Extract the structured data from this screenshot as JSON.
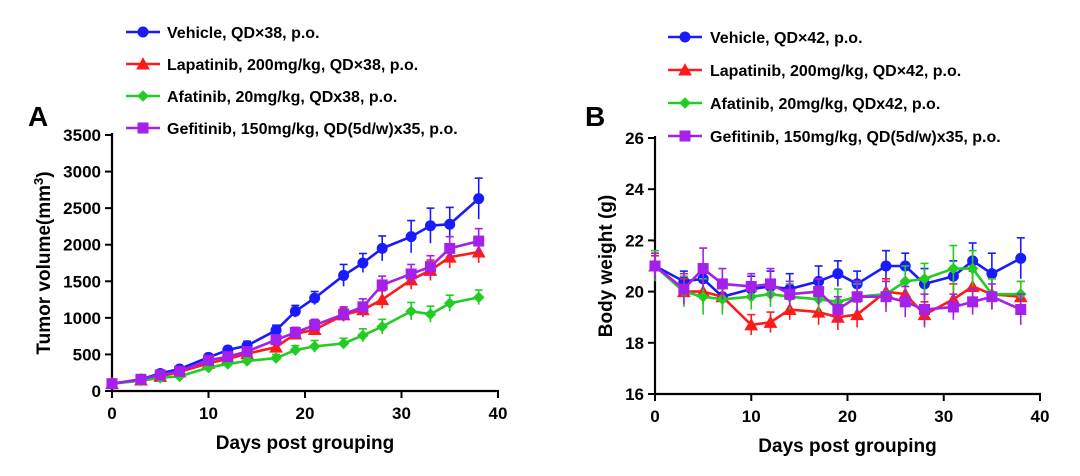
{
  "chart_data": [
    {
      "type": "line",
      "panel_label": "A",
      "xlabel": "Days post grouping",
      "ylabel": "Tumor volume(mm",
      "ylabel_sup": "3",
      "ylabel_suffix": ")",
      "xlim": [
        0,
        40
      ],
      "ylim": [
        0,
        3500
      ],
      "xticks": [
        0,
        10,
        20,
        30,
        40
      ],
      "yticks": [
        0,
        500,
        1000,
        1500,
        2000,
        2500,
        3000,
        3500
      ],
      "legend_position": "top",
      "series": [
        {
          "name": "Vehicle, QD×38, p.o.",
          "color": "#1a1aff",
          "marker": "circle",
          "x": [
            0,
            3,
            5,
            7,
            10,
            12,
            14,
            17,
            19,
            21,
            24,
            26,
            28,
            31,
            33,
            35,
            38
          ],
          "y": [
            100,
            160,
            240,
            300,
            460,
            560,
            620,
            830,
            1090,
            1270,
            1580,
            1750,
            1950,
            2110,
            2260,
            2280,
            2630
          ],
          "err": [
            25,
            25,
            30,
            40,
            50,
            50,
            60,
            70,
            80,
            90,
            150,
            130,
            170,
            220,
            240,
            230,
            280
          ]
        },
        {
          "name": "Lapatinib, 200mg/kg, QD×38, p.o.",
          "color": "#ff1a1a",
          "marker": "triangle",
          "x": [
            0,
            3,
            5,
            7,
            10,
            12,
            14,
            17,
            19,
            21,
            24,
            26,
            28,
            31,
            33,
            35,
            38
          ],
          "y": [
            100,
            150,
            200,
            260,
            380,
            440,
            510,
            600,
            780,
            840,
            1040,
            1110,
            1250,
            1520,
            1650,
            1830,
            1900
          ],
          "err": [
            20,
            20,
            25,
            30,
            40,
            45,
            50,
            60,
            70,
            75,
            90,
            100,
            120,
            130,
            140,
            150,
            150
          ]
        },
        {
          "name": "Afatinib, 20mg/kg, QDx38, p.o.",
          "color": "#22cc22",
          "marker": "diamond",
          "x": [
            0,
            3,
            5,
            7,
            10,
            12,
            14,
            17,
            19,
            21,
            24,
            26,
            28,
            31,
            33,
            35,
            38
          ],
          "y": [
            100,
            140,
            180,
            200,
            320,
            370,
            410,
            450,
            560,
            610,
            650,
            760,
            880,
            1090,
            1050,
            1200,
            1280
          ],
          "err": [
            20,
            20,
            25,
            25,
            35,
            40,
            40,
            50,
            60,
            80,
            70,
            90,
            100,
            120,
            110,
            110,
            100
          ]
        },
        {
          "name": "Gefitinib, 150mg/kg, QD(5d/w)x35, p.o.",
          "color": "#a520e8",
          "marker": "square",
          "x": [
            0,
            3,
            5,
            7,
            10,
            12,
            14,
            17,
            19,
            21,
            24,
            26,
            28,
            31,
            33,
            35,
            38
          ],
          "y": [
            100,
            160,
            220,
            270,
            420,
            470,
            540,
            700,
            800,
            900,
            1050,
            1150,
            1450,
            1600,
            1700,
            1950,
            2050
          ],
          "err": [
            20,
            25,
            30,
            35,
            45,
            50,
            55,
            65,
            70,
            80,
            100,
            110,
            120,
            130,
            150,
            160,
            170
          ]
        }
      ]
    },
    {
      "type": "line",
      "panel_label": "B",
      "xlabel": "Days post grouping",
      "ylabel": "Body weight (g)",
      "xlim": [
        0,
        40
      ],
      "ylim": [
        16,
        26
      ],
      "xticks": [
        0,
        10,
        20,
        30,
        40
      ],
      "yticks": [
        16,
        18,
        20,
        22,
        24,
        26
      ],
      "legend_position": "top",
      "series": [
        {
          "name": "Vehicle, QD×42, p.o.",
          "color": "#1a1aff",
          "marker": "circle",
          "x": [
            0,
            3,
            5,
            7,
            10,
            12,
            14,
            17,
            19,
            21,
            24,
            26,
            28,
            31,
            33,
            35,
            38
          ],
          "y": [
            21.0,
            20.4,
            20.5,
            19.8,
            20.1,
            20.2,
            20.1,
            20.4,
            20.7,
            20.3,
            21.0,
            21.0,
            20.3,
            20.6,
            21.2,
            20.7,
            21.3
          ],
          "err": [
            0.4,
            0.4,
            0.5,
            0.5,
            0.5,
            0.6,
            0.6,
            0.6,
            0.5,
            0.5,
            0.6,
            0.5,
            0.6,
            0.6,
            0.7,
            0.8,
            0.8
          ]
        },
        {
          "name": "Lapatinib, 200mg/kg, QD×42, p.o.",
          "color": "#ff1a1a",
          "marker": "triangle",
          "x": [
            0,
            3,
            5,
            7,
            10,
            12,
            14,
            17,
            19,
            21,
            24,
            26,
            28,
            31,
            33,
            35,
            38
          ],
          "y": [
            21.0,
            20.0,
            20.0,
            19.8,
            18.7,
            18.8,
            19.3,
            19.2,
            19.0,
            19.1,
            20.0,
            19.9,
            19.1,
            19.7,
            20.2,
            19.9,
            19.8
          ],
          "err": [
            0.4,
            0.5,
            0.5,
            0.5,
            0.4,
            0.4,
            0.4,
            0.5,
            0.5,
            0.5,
            0.5,
            0.5,
            0.5,
            0.6,
            0.6,
            0.6,
            0.6
          ]
        },
        {
          "name": "Afatinib, 20mg/kg, QDx42, p.o.",
          "color": "#22cc22",
          "marker": "diamond",
          "x": [
            0,
            3,
            5,
            7,
            10,
            12,
            14,
            17,
            19,
            21,
            24,
            26,
            28,
            31,
            33,
            35,
            38
          ],
          "y": [
            21.0,
            20.0,
            19.8,
            19.7,
            19.8,
            19.9,
            19.8,
            19.7,
            19.6,
            19.8,
            19.9,
            20.4,
            20.5,
            20.9,
            20.9,
            19.9,
            19.9
          ],
          "err": [
            0.6,
            0.6,
            0.7,
            0.6,
            0.5,
            0.5,
            0.5,
            0.5,
            0.5,
            0.5,
            0.5,
            0.6,
            0.6,
            0.9,
            0.7,
            0.6,
            0.5
          ]
        },
        {
          "name": "Gefitinib, 150mg/kg, QD(5d/w)x35, p.o.",
          "color": "#a520e8",
          "marker": "square",
          "x": [
            0,
            3,
            5,
            7,
            10,
            12,
            14,
            17,
            19,
            21,
            24,
            26,
            28,
            31,
            33,
            35,
            38
          ],
          "y": [
            21.0,
            20.1,
            20.9,
            20.3,
            20.2,
            20.3,
            19.9,
            20.0,
            19.3,
            19.8,
            19.8,
            19.6,
            19.3,
            19.4,
            19.6,
            19.8,
            19.3
          ],
          "err": [
            0.5,
            0.6,
            0.8,
            0.6,
            0.5,
            0.6,
            0.5,
            0.5,
            0.5,
            0.6,
            0.6,
            0.6,
            0.6,
            0.5,
            0.5,
            0.5,
            0.6
          ]
        }
      ]
    }
  ]
}
